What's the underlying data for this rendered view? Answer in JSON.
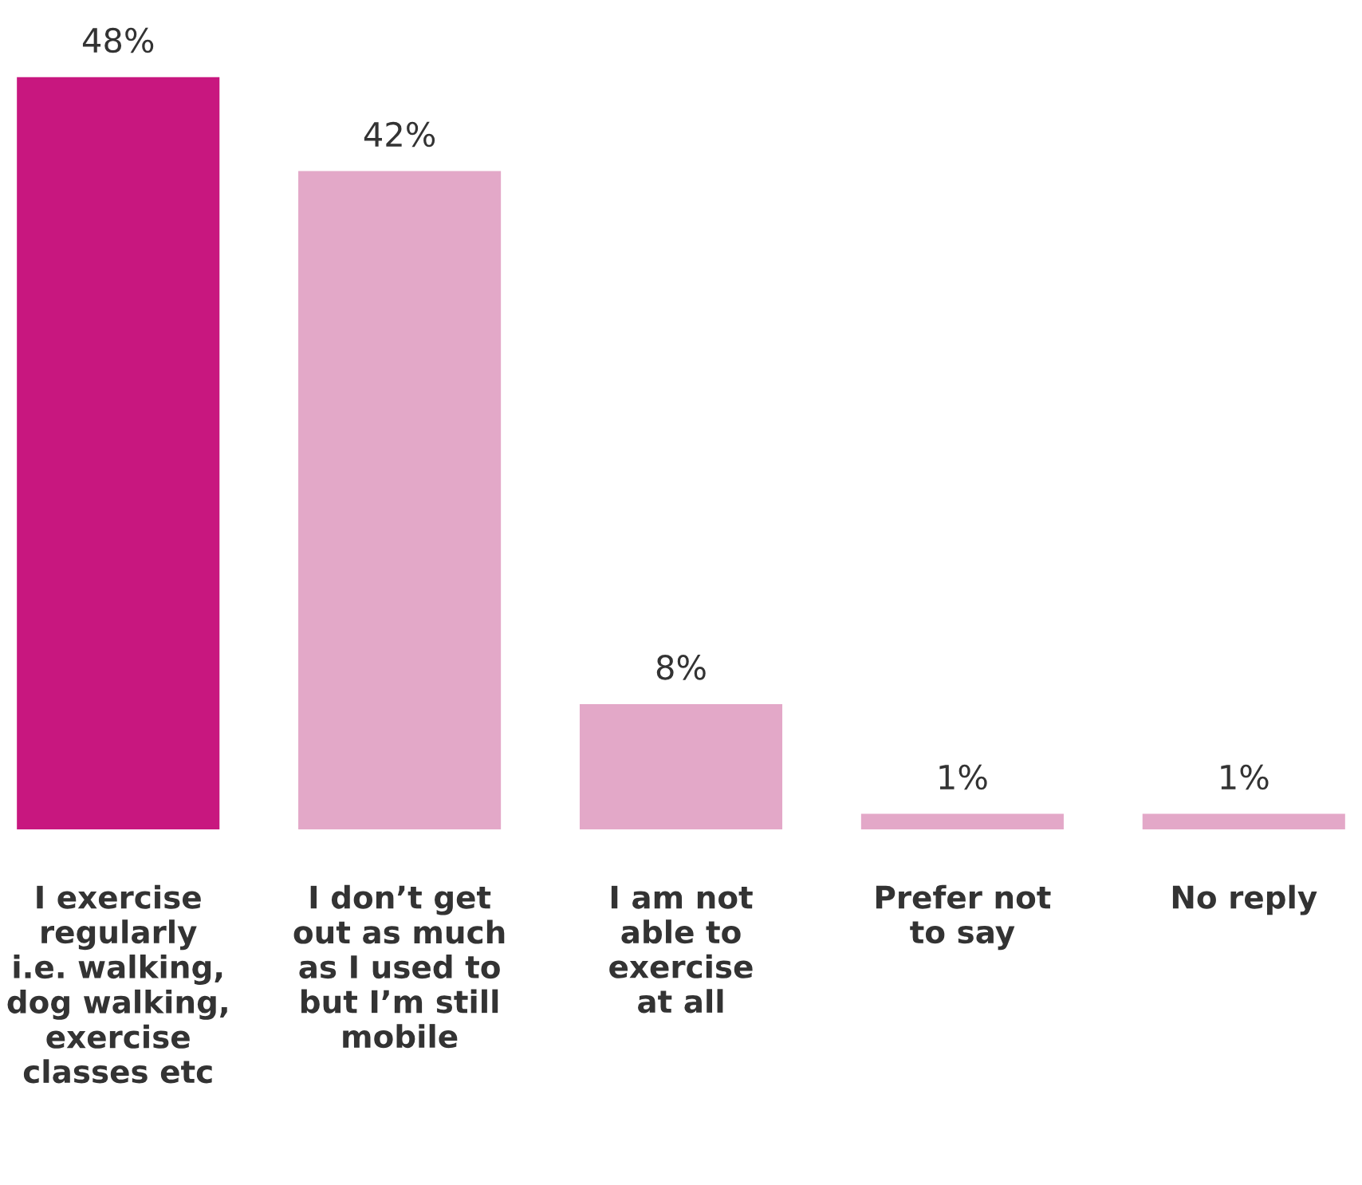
{
  "chart_data": {
    "type": "bar",
    "categories": [
      "I exercise\nregularly\ni.e. walking,\ndog walking,\nexercise\nclasses etc",
      "I don’t get\nout as much\nas I used to\nbut I’m still\nmobile",
      "I am not\nable to\nexercise\nat all",
      "Prefer not\nto say",
      "No reply"
    ],
    "values": [
      48,
      42,
      8,
      1,
      1
    ],
    "colors": [
      "#c8177f",
      "#e3a8c8",
      "#e3a8c8",
      "#e3a8c8",
      "#e3a8c8"
    ],
    "value_labels": [
      "48%",
      "42%",
      "8%",
      "1%",
      "1%"
    ],
    "grid": false,
    "legend": false
  }
}
